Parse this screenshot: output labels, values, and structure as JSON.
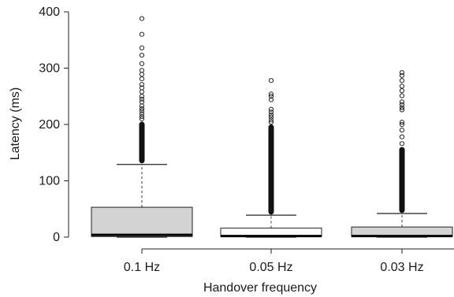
{
  "chart_data": {
    "type": "box",
    "ylabel": "Latency (ms)",
    "xlabel": "Handover frequency",
    "ylim": [
      0,
      400
    ],
    "yticks": [
      0,
      100,
      200,
      300,
      400
    ],
    "categories": [
      "0.1 Hz",
      "0.05 Hz",
      "0.03 Hz"
    ],
    "boxes": [
      {
        "category": "0.1 Hz",
        "fill": "#d3d3d3",
        "lower_whisker": 0,
        "q1": 1,
        "median": 4,
        "q3": 53,
        "upper_whisker": 129,
        "outliers_dense_range": [
          131,
          205
        ],
        "outliers": [
          388,
          360,
          336,
          323,
          308,
          296,
          289,
          281,
          271,
          265,
          258,
          250,
          245,
          240,
          233,
          228,
          224,
          219,
          214,
          210
        ]
      },
      {
        "category": "0.05 Hz",
        "fill": "#ffffff",
        "lower_whisker": 0,
        "q1": 1,
        "median": 2,
        "q3": 16,
        "upper_whisker": 39,
        "outliers_dense_range": [
          40,
          200
        ],
        "outliers": [
          278,
          254,
          250,
          244,
          227,
          222,
          217,
          213,
          208,
          204
        ]
      },
      {
        "category": "0.03 Hz",
        "fill": "#d3d3d3",
        "lower_whisker": 0,
        "q1": 1,
        "median": 2,
        "q3": 18,
        "upper_whisker": 42,
        "outliers_dense_range": [
          43,
          160
        ],
        "outliers": [
          292,
          287,
          278,
          268,
          260,
          251,
          240,
          235,
          230,
          226,
          204,
          200,
          190,
          178,
          166
        ]
      }
    ]
  }
}
